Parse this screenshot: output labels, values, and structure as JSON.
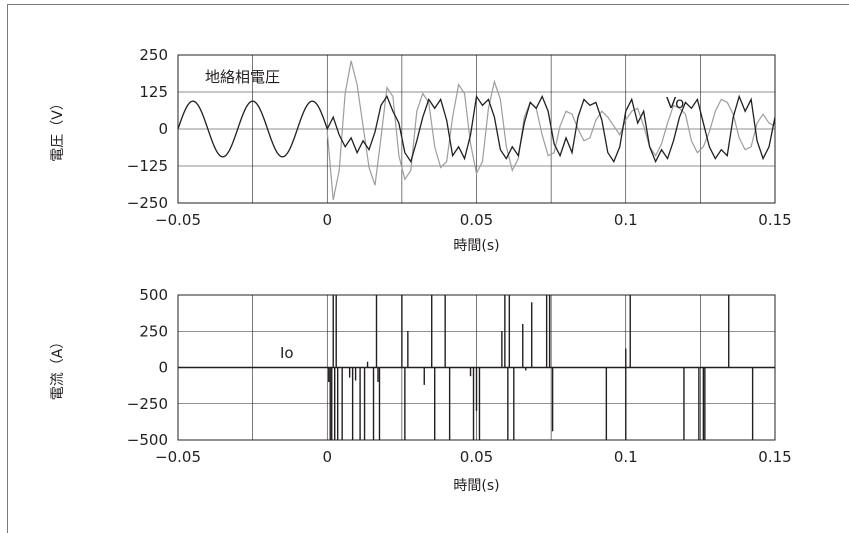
{
  "chart_data": [
    {
      "type": "line",
      "ylabel": "電圧（V）",
      "xlabel": "時間(s)",
      "xlim": [
        -0.05,
        0.15
      ],
      "ylim": [
        -250,
        250
      ],
      "xticks": [
        "−0.05",
        "0",
        "0.05",
        "0.1",
        "0.15"
      ],
      "yticks": [
        "250",
        "125",
        "0",
        "−125",
        "−250"
      ],
      "grid": true,
      "annotations": [
        "地絡相電圧",
        "Vo"
      ],
      "series": [
        {
          "name": "地絡相電圧",
          "color": "#231f20",
          "x": [
            -0.05,
            -0.0475,
            -0.045,
            -0.0425,
            -0.04,
            -0.0375,
            -0.035,
            -0.0325,
            -0.03,
            -0.0275,
            -0.025,
            -0.0225,
            -0.02,
            -0.0175,
            -0.015,
            -0.0125,
            -0.01,
            -0.0075,
            -0.005,
            -0.0025,
            0,
            0.002,
            0.004,
            0.006,
            0.008,
            0.01,
            0.012,
            0.014,
            0.016,
            0.018,
            0.02,
            0.022,
            0.024,
            0.026,
            0.028,
            0.03,
            0.032,
            0.034,
            0.036,
            0.038,
            0.04,
            0.042,
            0.044,
            0.046,
            0.048,
            0.05,
            0.052,
            0.054,
            0.056,
            0.058,
            0.06,
            0.062,
            0.064,
            0.066,
            0.068,
            0.07,
            0.072,
            0.074,
            0.076,
            0.078,
            0.08,
            0.082,
            0.084,
            0.086,
            0.088,
            0.09,
            0.092,
            0.094,
            0.096,
            0.098,
            0.1,
            0.102,
            0.104,
            0.106,
            0.108,
            0.11,
            0.112,
            0.114,
            0.116,
            0.118,
            0.12,
            0.122,
            0.124,
            0.126,
            0.128,
            0.13,
            0.132,
            0.134,
            0.136,
            0.138,
            0.14,
            0.142,
            0.144,
            0.146,
            0.148,
            0.15
          ],
          "y": [
            0,
            66,
            94,
            66,
            0,
            -66,
            -94,
            -66,
            0,
            66,
            94,
            66,
            0,
            -66,
            -94,
            -66,
            0,
            66,
            94,
            66,
            0,
            40,
            -20,
            -60,
            -30,
            -80,
            -40,
            -70,
            -10,
            80,
            110,
            60,
            20,
            -80,
            -110,
            -40,
            40,
            100,
            70,
            100,
            30,
            -90,
            -60,
            -100,
            -20,
            110,
            80,
            100,
            40,
            -70,
            -100,
            -60,
            -90,
            20,
            90,
            70,
            110,
            60,
            -50,
            -90,
            -30,
            -80,
            40,
            100,
            80,
            90,
            30,
            -80,
            -110,
            -60,
            60,
            100,
            20,
            60,
            -60,
            -110,
            -70,
            -100,
            -40,
            40,
            90,
            70,
            100,
            20,
            -60,
            -100,
            -70,
            -90,
            40,
            110,
            60,
            100,
            -40,
            -100,
            -60,
            40
          ]
        },
        {
          "name": "Vo",
          "color": "#9d9d9d",
          "x": [
            0,
            0.002,
            0.004,
            0.006,
            0.008,
            0.01,
            0.012,
            0.014,
            0.016,
            0.018,
            0.02,
            0.022,
            0.024,
            0.026,
            0.028,
            0.03,
            0.032,
            0.034,
            0.036,
            0.038,
            0.04,
            0.042,
            0.044,
            0.046,
            0.048,
            0.05,
            0.052,
            0.054,
            0.056,
            0.058,
            0.06,
            0.062,
            0.064,
            0.066,
            0.068,
            0.07,
            0.072,
            0.074,
            0.076,
            0.078,
            0.08,
            0.082,
            0.084,
            0.086,
            0.088,
            0.09,
            0.092,
            0.094,
            0.096,
            0.098,
            0.1,
            0.102,
            0.104,
            0.106,
            0.108,
            0.11,
            0.112,
            0.114,
            0.116,
            0.118,
            0.12,
            0.122,
            0.124,
            0.126,
            0.128,
            0.13,
            0.132,
            0.134,
            0.136,
            0.138,
            0.14,
            0.142,
            0.144,
            0.146,
            0.148,
            0.15
          ],
          "y": [
            -10,
            -240,
            -140,
            120,
            230,
            150,
            10,
            -130,
            -190,
            -30,
            140,
            110,
            -90,
            -170,
            -140,
            60,
            120,
            90,
            -60,
            -130,
            -110,
            40,
            150,
            120,
            -50,
            -150,
            -110,
            70,
            160,
            100,
            -60,
            -140,
            -100,
            40,
            90,
            70,
            -20,
            -90,
            -80,
            10,
            60,
            50,
            0,
            -40,
            -30,
            30,
            60,
            40,
            10,
            -20,
            30,
            60,
            70,
            10,
            -60,
            -90,
            -50,
            20,
            80,
            70,
            50,
            -40,
            -80,
            -60,
            -10,
            60,
            100,
            90,
            50,
            -30,
            -70,
            -60,
            20,
            50,
            20,
            10
          ]
        }
      ]
    },
    {
      "type": "line",
      "ylabel": "電流（A）",
      "xlabel": "時間(s)",
      "xlim": [
        -0.05,
        0.15
      ],
      "ylim": [
        -500,
        500
      ],
      "xticks": [
        "−0.05",
        "0",
        "0.05",
        "0.1",
        "0.15"
      ],
      "yticks": [
        "500",
        "250",
        "0",
        "−250",
        "−500"
      ],
      "grid": true,
      "annotations": [
        "Io"
      ],
      "series": [
        {
          "name": "Io",
          "color": "#231f20",
          "spikes": [
            [
              0.0005,
              -100
            ],
            [
              0.001,
              -500
            ],
            [
              0.0015,
              -500
            ],
            [
              0.002,
              500
            ],
            [
              0.0025,
              -500
            ],
            [
              0.003,
              500
            ],
            [
              0.0035,
              -500
            ],
            [
              0.005,
              -500
            ],
            [
              0.0075,
              -70
            ],
            [
              0.0085,
              -500
            ],
            [
              0.0095,
              -90
            ],
            [
              0.011,
              -500
            ],
            [
              0.0125,
              -500
            ],
            [
              0.0135,
              40
            ],
            [
              0.0155,
              -500
            ],
            [
              0.0165,
              500
            ],
            [
              0.017,
              -100
            ],
            [
              0.0175,
              -500
            ],
            [
              0.025,
              500
            ],
            [
              0.026,
              -500
            ],
            [
              0.027,
              250
            ],
            [
              0.0325,
              -120
            ],
            [
              0.035,
              500
            ],
            [
              0.036,
              -500
            ],
            [
              0.0395,
              500
            ],
            [
              0.041,
              -500
            ],
            [
              0.048,
              -60
            ],
            [
              0.049,
              -500
            ],
            [
              0.05,
              -300
            ],
            [
              0.051,
              -500
            ],
            [
              0.0585,
              250
            ],
            [
              0.0595,
              500
            ],
            [
              0.0605,
              -500
            ],
            [
              0.061,
              500
            ],
            [
              0.0625,
              -500
            ],
            [
              0.0655,
              300
            ],
            [
              0.0665,
              -20
            ],
            [
              0.0685,
              450
            ],
            [
              0.0735,
              500
            ],
            [
              0.0745,
              500
            ],
            [
              0.0755,
              -440
            ],
            [
              0.0935,
              -500
            ],
            [
              0.1,
              -500
            ],
            [
              0.1,
              130
            ],
            [
              0.1015,
              500
            ],
            [
              0.1195,
              -500
            ],
            [
              0.1245,
              -500
            ],
            [
              0.126,
              -500
            ],
            [
              0.1265,
              -500
            ],
            [
              0.1345,
              500
            ],
            [
              0.1425,
              -500
            ]
          ]
        }
      ]
    }
  ]
}
